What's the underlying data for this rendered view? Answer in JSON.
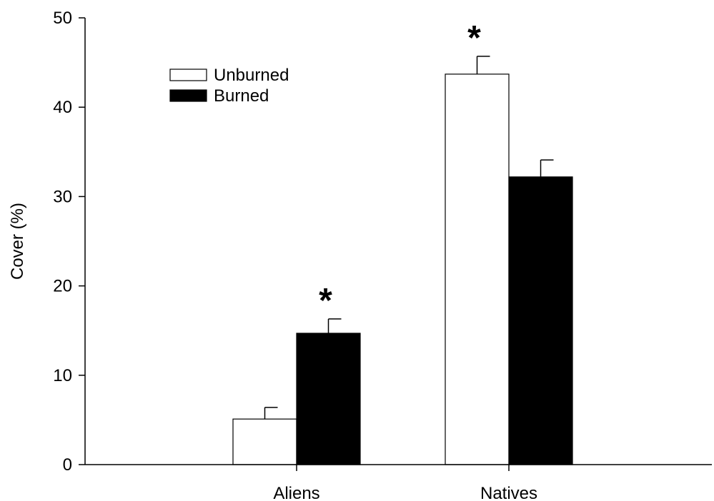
{
  "chart_data": {
    "type": "bar",
    "title": "",
    "xlabel": "",
    "ylabel": "Cover (%)",
    "ylim": [
      0,
      50
    ],
    "yticks": [
      0,
      10,
      20,
      30,
      40,
      50
    ],
    "categories": [
      "Aliens",
      "Natives"
    ],
    "series": [
      {
        "name": "Unburned",
        "values": [
          5.1,
          43.7
        ],
        "errors": [
          1.3,
          2.0
        ],
        "color": "#ffffff"
      },
      {
        "name": "Burned",
        "values": [
          14.7,
          32.2
        ],
        "errors": [
          1.6,
          1.9
        ],
        "color": "#000000"
      }
    ],
    "annotations": [
      {
        "category": "Aliens",
        "text": "*"
      },
      {
        "category": "Natives",
        "text": "*"
      }
    ],
    "legend_position": "top-left",
    "grid": false
  }
}
